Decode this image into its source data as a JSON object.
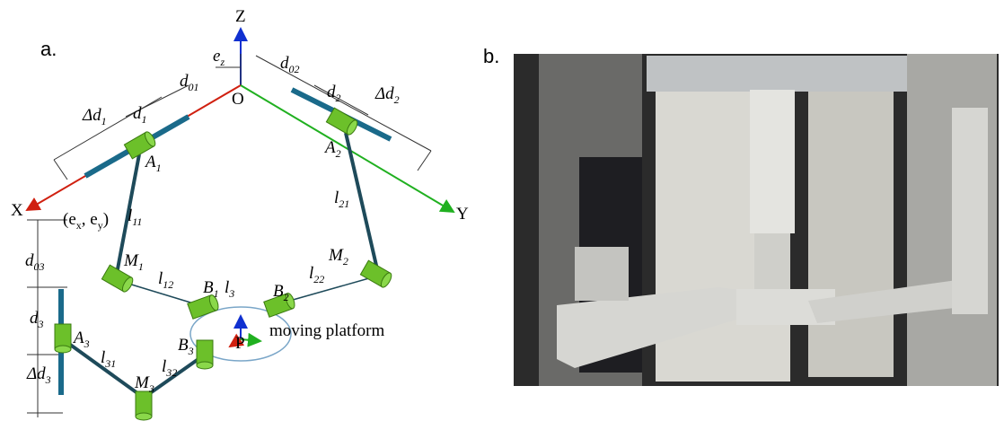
{
  "figure_a": {
    "panel_label": "a.",
    "labels": [
      [
        "Z"
      ],
      [
        "X"
      ],
      [
        "Y"
      ],
      [
        "O"
      ],
      [
        "e",
        {
          "sub": "z"
        }
      ],
      [
        "d",
        {
          "sub": "01"
        }
      ],
      [
        "d",
        {
          "sub": "02"
        }
      ],
      [
        "d",
        {
          "sub": "2"
        }
      ],
      [
        "Δd",
        {
          "sub": "2"
        }
      ],
      [
        "Δd",
        {
          "sub": "1"
        }
      ],
      [
        "d",
        {
          "sub": "1"
        }
      ],
      [
        "A",
        {
          "sub": "1"
        }
      ],
      [
        "A",
        {
          "sub": "2"
        }
      ],
      [
        "l",
        {
          "sub": "21"
        }
      ],
      [
        "(e",
        {
          "sub": "x"
        },
        ", e",
        {
          "sub": "y"
        },
        ")"
      ],
      [
        "l",
        {
          "sub": "11"
        }
      ],
      [
        "d",
        {
          "sub": "03"
        }
      ],
      [
        "M",
        {
          "sub": "1"
        }
      ],
      [
        "M",
        {
          "sub": "2"
        }
      ],
      [
        "l",
        {
          "sub": "12"
        }
      ],
      [
        "l",
        {
          "sub": "22"
        }
      ],
      [
        "B",
        {
          "sub": "1"
        }
      ],
      [
        "l",
        {
          "sub": "3"
        }
      ],
      [
        "B",
        {
          "sub": "2"
        }
      ],
      [
        "moving platform"
      ],
      [
        "d",
        {
          "sub": "3"
        }
      ],
      [
        "A",
        {
          "sub": "3"
        }
      ],
      [
        "Δd",
        {
          "sub": "3"
        }
      ],
      [
        "l",
        {
          "sub": "31"
        }
      ],
      [
        "B",
        {
          "sub": "3"
        }
      ],
      [
        "l",
        {
          "sub": "32"
        }
      ],
      [
        "M",
        {
          "sub": "3"
        }
      ],
      [
        "P"
      ]
    ]
  },
  "figure_b": {
    "panel_label": "b."
  }
}
